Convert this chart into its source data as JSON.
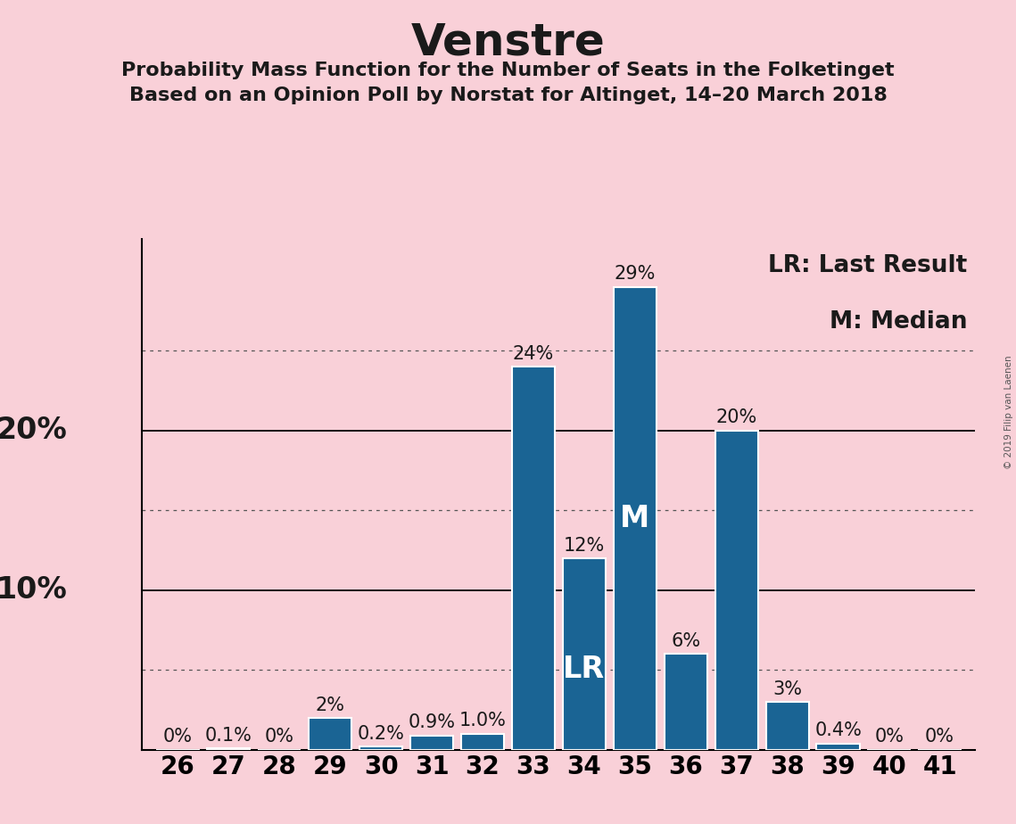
{
  "title": "Venstre",
  "subtitle1": "Probability Mass Function for the Number of Seats in the Folketinget",
  "subtitle2": "Based on an Opinion Poll by Norstat for Altinget, 14–20 March 2018",
  "copyright": "© 2019 Filip van Laenen",
  "seats": [
    26,
    27,
    28,
    29,
    30,
    31,
    32,
    33,
    34,
    35,
    36,
    37,
    38,
    39,
    40,
    41
  ],
  "probabilities": [
    0.0,
    0.1,
    0.0,
    2.0,
    0.2,
    0.9,
    1.0,
    24.0,
    12.0,
    29.0,
    6.0,
    20.0,
    3.0,
    0.4,
    0.0,
    0.0
  ],
  "labels": [
    "0%",
    "0.1%",
    "0%",
    "2%",
    "0.2%",
    "0.9%",
    "1.0%",
    "24%",
    "12%",
    "29%",
    "6%",
    "20%",
    "3%",
    "0.4%",
    "0%",
    "0%"
  ],
  "bar_color": "#1a6494",
  "background_color": "#f9d0d8",
  "text_color": "#1a1a1a",
  "bar_edge_color": "#ffffff",
  "last_result_seat": 34,
  "median_seat": 35,
  "lr_label": "LR",
  "median_label": "M",
  "legend_lr": "LR: Last Result",
  "legend_m": "M: Median",
  "grid_lines_dotted": [
    5,
    15,
    25
  ],
  "grid_lines_solid": [
    10,
    20
  ],
  "title_fontsize": 36,
  "subtitle_fontsize": 16,
  "tick_fontsize": 20,
  "legend_fontsize": 19,
  "bar_label_fontsize": 15,
  "inbar_label_fontsize": 24,
  "ytick_label_fontsize": 24
}
